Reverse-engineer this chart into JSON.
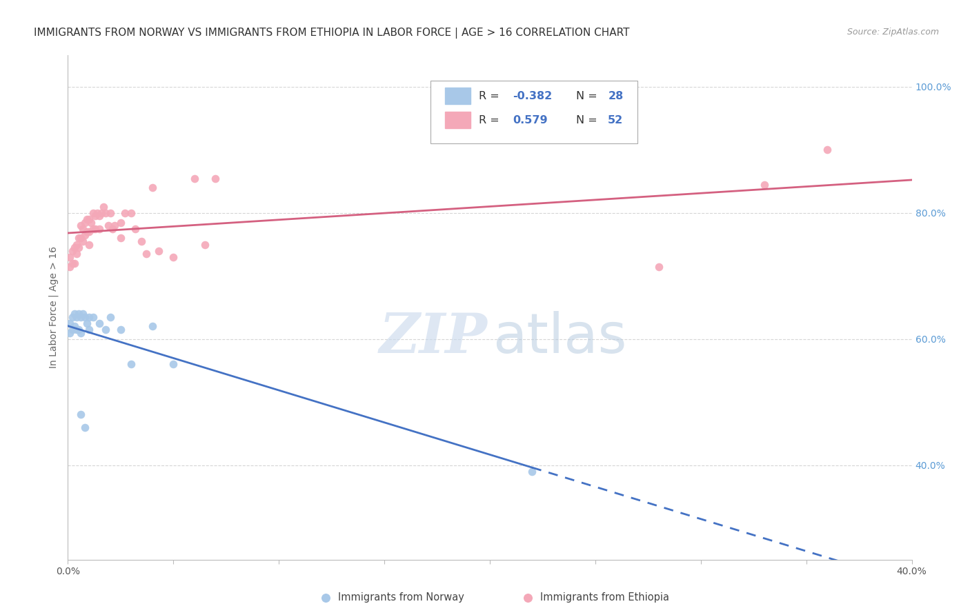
{
  "title": "IMMIGRANTS FROM NORWAY VS IMMIGRANTS FROM ETHIOPIA IN LABOR FORCE | AGE > 16 CORRELATION CHART",
  "source": "Source: ZipAtlas.com",
  "ylabel": "In Labor Force | Age > 16",
  "xlim": [
    0.0,
    0.4
  ],
  "ylim": [
    0.25,
    1.05
  ],
  "norway_R": -0.382,
  "norway_N": 28,
  "ethiopia_R": 0.579,
  "ethiopia_N": 52,
  "norway_color": "#a8c8e8",
  "ethiopia_color": "#f4a8b8",
  "norway_line_color": "#4472c4",
  "ethiopia_line_color": "#d46080",
  "norway_scatter_x": [
    0.001,
    0.001,
    0.002,
    0.002,
    0.003,
    0.003,
    0.004,
    0.004,
    0.005,
    0.005,
    0.006,
    0.006,
    0.007,
    0.008,
    0.009,
    0.01,
    0.01,
    0.012,
    0.015,
    0.018,
    0.02,
    0.025,
    0.03,
    0.04,
    0.05,
    0.22,
    0.006,
    0.008
  ],
  "norway_scatter_y": [
    0.625,
    0.61,
    0.635,
    0.615,
    0.64,
    0.62,
    0.635,
    0.615,
    0.64,
    0.615,
    0.635,
    0.61,
    0.64,
    0.635,
    0.625,
    0.635,
    0.615,
    0.635,
    0.625,
    0.615,
    0.635,
    0.615,
    0.56,
    0.62,
    0.56,
    0.39,
    0.48,
    0.46
  ],
  "ethiopia_scatter_x": [
    0.001,
    0.001,
    0.002,
    0.002,
    0.003,
    0.003,
    0.004,
    0.004,
    0.005,
    0.005,
    0.006,
    0.006,
    0.007,
    0.007,
    0.008,
    0.008,
    0.009,
    0.009,
    0.01,
    0.01,
    0.01,
    0.011,
    0.012,
    0.012,
    0.013,
    0.013,
    0.014,
    0.015,
    0.015,
    0.016,
    0.017,
    0.018,
    0.019,
    0.02,
    0.021,
    0.022,
    0.025,
    0.025,
    0.027,
    0.03,
    0.032,
    0.035,
    0.037,
    0.04,
    0.043,
    0.05,
    0.06,
    0.065,
    0.07,
    0.28,
    0.33,
    0.36
  ],
  "ethiopia_scatter_y": [
    0.715,
    0.73,
    0.72,
    0.74,
    0.72,
    0.745,
    0.735,
    0.75,
    0.76,
    0.745,
    0.78,
    0.76,
    0.775,
    0.755,
    0.785,
    0.765,
    0.79,
    0.77,
    0.79,
    0.77,
    0.75,
    0.785,
    0.8,
    0.775,
    0.795,
    0.775,
    0.8,
    0.795,
    0.775,
    0.8,
    0.81,
    0.8,
    0.78,
    0.8,
    0.775,
    0.78,
    0.785,
    0.76,
    0.8,
    0.8,
    0.775,
    0.755,
    0.735,
    0.84,
    0.74,
    0.73,
    0.855,
    0.75,
    0.855,
    0.715,
    0.845,
    0.9
  ],
  "norway_line_x_start": 0.0,
  "norway_line_x_solid_end": 0.22,
  "norway_line_x_dash_end": 0.4,
  "ethiopia_line_x_start": 0.0,
  "ethiopia_line_x_end": 0.4,
  "background_color": "#ffffff",
  "grid_color": "#cccccc",
  "watermark_zip_color": "#c8d8ec",
  "watermark_atlas_color": "#b8cce0"
}
